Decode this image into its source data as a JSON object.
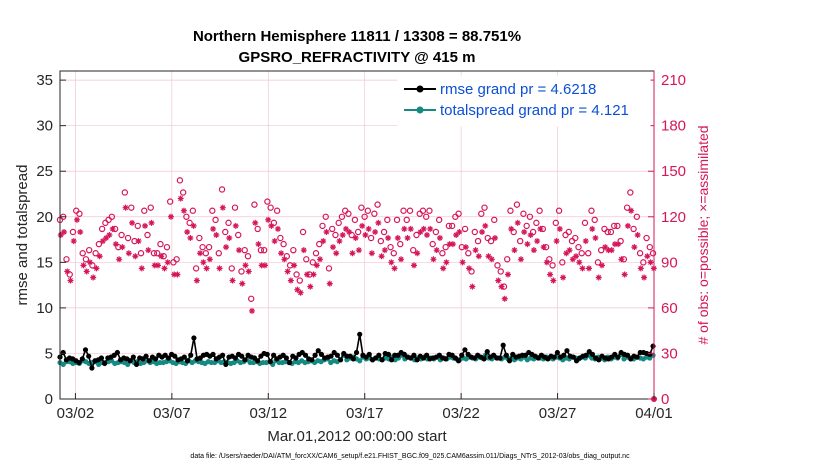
{
  "chart_data": {
    "type": "line",
    "title": "Northern Hemisphere 11811 / 13308 = 88.751%",
    "subtitle": "GPSRO_REFRACTIVITY @ 415 m",
    "xlabel": "Mar.01,2012 00:00:00 start",
    "ylabel": "rmse and totalspread",
    "ylabel_right": "# of obs: o=possible; ×=assimilated",
    "xlim": [
      0.2,
      31.0
    ],
    "ylim": [
      0,
      36
    ],
    "ylim_right": [
      0,
      216
    ],
    "x_ticks": [
      {
        "value": 1.0,
        "label": "03/02"
      },
      {
        "value": 6.0,
        "label": "03/07"
      },
      {
        "value": 11.0,
        "label": "03/12"
      },
      {
        "value": 16.0,
        "label": "03/17"
      },
      {
        "value": 21.0,
        "label": "03/22"
      },
      {
        "value": 26.0,
        "label": "03/27"
      },
      {
        "value": 31.0,
        "label": "04/01"
      }
    ],
    "y_ticks": [
      "0",
      "5",
      "10",
      "15",
      "20",
      "25",
      "30",
      "35"
    ],
    "y_ticks_right": [
      "0",
      "30",
      "60",
      "90",
      "120",
      "150",
      "180",
      "210"
    ],
    "grid": true,
    "legend_position": "top-right",
    "colors": {
      "rmse": "#000000",
      "totalspread": "#148a82",
      "obs": "#d6165a",
      "grid": "#f3c6cf",
      "legend_text": "#0b4fd8"
    },
    "series": [
      {
        "name": "rmse grand pr = 4.6218",
        "marker": "filled-circle",
        "values": [
          4.6,
          5.1,
          4.3,
          4.5,
          4.4,
          4.2,
          4.0,
          4.4,
          5.4,
          4.7,
          3.4,
          4.2,
          4.3,
          4.5,
          3.9,
          4.5,
          4.6,
          4.8,
          5.1,
          4.3,
          4.5,
          4.4,
          4.2,
          4.6,
          3.8,
          4.5,
          4.4,
          4.7,
          4.2,
          4.6,
          4.4,
          4.8,
          4.6,
          4.8,
          4.5,
          4.9,
          4.7,
          4.3,
          4.4,
          4.6,
          4.2,
          4.8,
          6.7,
          4.4,
          4.5,
          4.8,
          4.9,
          4.7,
          4.9,
          4.4,
          4.6,
          4.8,
          3.8,
          4.6,
          4.7,
          4.5,
          4.9,
          4.7,
          4.3,
          4.8,
          4.6,
          4.5,
          4.2,
          4.7,
          5.0,
          4.9,
          4.1,
          4.8,
          4.4,
          4.6,
          4.8,
          4.5,
          4.0,
          4.7,
          4.5,
          4.9,
          5.1,
          4.8,
          4.4,
          4.3,
          4.8,
          5.3,
          4.9,
          4.5,
          4.6,
          4.7,
          5.1,
          4.8,
          4.3,
          5.0,
          4.7,
          4.7,
          4.4,
          5.1,
          7.1,
          4.8,
          4.6,
          4.9,
          4.3,
          4.5,
          4.8,
          4.3,
          5.0,
          4.9,
          4.3,
          4.8,
          4.8,
          5.1,
          4.9,
          4.6,
          4.5,
          4.8,
          4.3,
          4.7,
          4.5,
          4.8,
          4.4,
          4.5,
          4.6,
          4.8,
          4.5,
          4.4,
          4.9,
          4.8,
          4.5,
          4.2,
          4.8,
          5.4,
          4.9,
          4.6,
          4.5,
          4.8,
          4.6,
          4.4,
          5.2,
          4.6,
          4.8,
          4.5,
          4.5,
          5.9,
          4.8,
          4.2,
          4.9,
          4.6,
          4.7,
          4.8,
          4.8,
          5.1,
          4.9,
          4.7,
          4.5,
          4.8,
          4.6,
          4.4,
          4.7,
          4.6,
          5.1,
          4.6,
          4.8,
          5.3,
          4.7,
          4.6,
          4.2,
          4.5,
          4.7,
          4.8,
          5.2,
          4.9,
          4.5,
          4.3,
          4.7,
          4.5,
          4.4,
          4.6,
          4.9,
          4.6,
          5.1,
          4.9,
          4.8,
          4.4,
          4.7,
          4.6,
          5.1,
          5.1,
          5.0,
          4.9,
          5.8
        ]
      },
      {
        "name": "totalspread grand pr = 4.121",
        "marker": "filled-circle",
        "values": [
          4.0,
          3.8,
          4.1,
          4.1,
          3.9,
          4.0,
          3.9,
          4.2,
          4.1,
          3.9,
          4.0,
          4.1,
          3.8,
          4.0,
          4.0,
          4.1,
          4.2,
          3.9,
          4.0,
          4.1,
          4.0,
          3.8,
          4.2,
          4.0,
          4.1,
          3.9,
          4.0,
          4.2,
          4.0,
          4.1,
          3.9,
          4.0,
          4.0,
          4.1,
          4.2,
          4.0,
          3.9,
          4.1,
          4.0,
          3.9,
          4.2,
          4.0,
          4.2,
          4.1,
          4.0,
          3.9,
          4.1,
          4.0,
          4.0,
          4.2,
          4.0,
          4.1,
          4.0,
          3.9,
          4.0,
          4.2,
          4.0,
          4.1,
          4.3,
          4.0,
          4.0,
          4.1,
          3.9,
          4.0,
          4.0,
          4.1,
          3.8,
          4.2,
          4.0,
          4.0,
          4.1,
          4.0,
          3.9,
          4.1,
          4.0,
          4.2,
          4.0,
          4.1,
          4.2,
          4.0,
          4.2,
          4.1,
          4.3,
          4.4,
          4.0,
          4.2,
          4.1,
          4.3,
          4.8,
          4.3,
          4.5,
          4.6,
          4.4,
          4.2,
          4.6,
          4.4,
          4.5,
          4.3,
          4.5,
          4.4,
          4.3,
          4.5,
          4.4,
          4.6,
          4.3,
          4.5,
          4.8,
          4.4,
          4.6,
          4.5,
          4.3,
          4.5,
          4.4,
          4.6,
          4.4,
          4.5,
          4.4,
          4.6,
          4.3,
          4.5,
          4.4,
          4.6,
          4.5,
          4.4,
          4.3,
          4.5,
          4.4,
          4.6,
          4.5,
          4.4,
          4.6,
          4.5,
          4.8,
          4.5,
          4.4,
          4.6,
          4.5,
          4.4,
          4.6,
          4.4,
          4.5,
          4.3,
          4.5,
          4.4,
          4.6,
          4.3,
          4.5,
          4.4,
          4.6,
          4.5,
          4.4,
          4.6,
          4.5,
          4.4,
          4.6,
          4.5,
          4.3,
          4.5,
          4.4,
          4.6,
          4.5,
          4.4,
          4.6,
          4.5,
          4.8,
          4.5,
          4.4,
          4.6,
          4.5,
          4.3,
          4.6,
          4.4,
          4.6,
          4.5,
          4.9,
          4.4,
          4.6,
          4.5,
          4.4,
          4.6,
          4.5,
          4.4,
          4.6,
          4.5,
          4.8
        ]
      }
    ],
    "obs_possible": [
      118,
      120,
      92,
      82,
      110,
      124,
      122,
      96,
      92,
      98,
      88,
      96,
      102,
      112,
      116,
      118,
      120,
      112,
      100,
      108,
      136,
      106,
      126,
      104,
      114,
      96,
      124,
      108,
      126,
      96,
      96,
      102,
      94,
      100,
      130,
      90,
      92,
      144,
      136,
      120,
      116,
      124,
      86,
      106,
      100,
      96,
      100,
      124,
      118,
      96,
      138,
      110,
      116,
      86,
      126,
      108,
      84,
      98,
      94,
      66,
      128,
      112,
      98,
      98,
      130,
      126,
      116,
      124,
      106,
      102,
      94,
      88,
      98,
      82,
      78,
      110,
      92,
      82,
      90,
      96,
      102,
      114,
      120,
      86,
      112,
      108,
      116,
      120,
      124,
      122,
      108,
      118,
      110,
      126,
      120,
      124,
      106,
      122,
      128,
      104,
      110,
      118,
      100,
      96,
      118,
      102,
      124,
      118,
      124,
      98,
      108,
      122,
      124,
      120,
      124,
      102,
      110,
      118,
      96,
      100,
      114,
      114,
      120,
      122,
      100,
      112,
      96,
      84,
      110,
      104,
      122,
      126,
      106,
      104,
      118,
      88,
      84,
      74,
      92,
      124,
      110,
      128,
      104,
      122,
      114,
      120,
      110,
      116,
      124,
      112,
      100,
      92,
      88,
      116,
      124,
      90,
      108,
      110,
      104,
      106,
      100,
      96,
      116,
      96,
      124,
      118,
      90,
      98,
      112,
      110,
      110,
      114,
      114,
      104,
      92,
      126,
      136,
      112,
      120,
      96,
      90,
      106,
      100,
      96
    ],
    "obs_assimilated": [
      108,
      110,
      84,
      78,
      104,
      118,
      110,
      88,
      84,
      90,
      80,
      86,
      94,
      104,
      106,
      108,
      112,
      102,
      92,
      100,
      126,
      96,
      116,
      94,
      104,
      86,
      114,
      98,
      116,
      88,
      88,
      94,
      86,
      90,
      120,
      82,
      82,
      132,
      124,
      110,
      106,
      114,
      78,
      96,
      90,
      86,
      92,
      112,
      108,
      86,
      126,
      100,
      106,
      78,
      114,
      98,
      76,
      88,
      84,
      58,
      116,
      102,
      88,
      88,
      118,
      114,
      104,
      112,
      96,
      92,
      84,
      78,
      88,
      72,
      70,
      98,
      82,
      74,
      82,
      88,
      92,
      104,
      110,
      76,
      100,
      96,
      104,
      108,
      112,
      110,
      96,
      106,
      98,
      114,
      108,
      112,
      96,
      110,
      116,
      94,
      98,
      106,
      90,
      86,
      106,
      92,
      112,
      106,
      112,
      88,
      96,
      110,
      112,
      108,
      112,
      92,
      98,
      106,
      86,
      90,
      102,
      102,
      108,
      110,
      90,
      100,
      86,
      74,
      98,
      94,
      110,
      114,
      94,
      92,
      106,
      78,
      74,
      66,
      82,
      112,
      98,
      116,
      92,
      110,
      102,
      108,
      98,
      104,
      112,
      100,
      90,
      82,
      78,
      104,
      112,
      80,
      96,
      98,
      92,
      94,
      90,
      86,
      104,
      86,
      112,
      106,
      80,
      88,
      100,
      98,
      98,
      102,
      102,
      92,
      82,
      114,
      124,
      100,
      108,
      86,
      80,
      94,
      90,
      86
    ]
  },
  "footer": {
    "file_path": "data file: /Users/raeder/DAI/ATM_forcXX/CAM6_setup/f.e21.FHIST_BGC.f09_025.CAM6assim.011/Diags_NTrS_2012-03/obs_diag_output.nc"
  }
}
